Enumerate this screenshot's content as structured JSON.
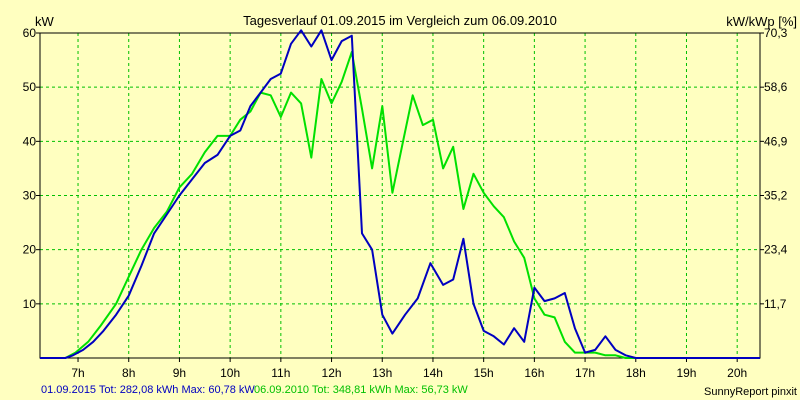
{
  "chart_data": {
    "type": "line",
    "title": "Tagesverlauf 01.09.2015 im Vergleich zum 06.09.2010",
    "ylabel_left": "kW",
    "ylabel_right": "kW/kWp [%]",
    "ylim": [
      0,
      60
    ],
    "y_ticks_left": [
      "10",
      "20",
      "30",
      "40",
      "50",
      "60"
    ],
    "y_ticks_right": [
      "11,7",
      "23,4",
      "35,2",
      "46,9",
      "58,6",
      "70,3"
    ],
    "x_ticks": [
      "7h",
      "8h",
      "9h",
      "10h",
      "11h",
      "12h",
      "13h",
      "14h",
      "15h",
      "16h",
      "17h",
      "18h",
      "19h",
      "20h"
    ],
    "xlim": [
      6.25,
      20.45
    ],
    "grid": true,
    "series": [
      {
        "name": "01.09.2015",
        "color": "#0000c0",
        "points": [
          [
            6.25,
            0
          ],
          [
            6.75,
            0
          ],
          [
            6.9,
            0.5
          ],
          [
            7.1,
            1.5
          ],
          [
            7.3,
            3
          ],
          [
            7.5,
            5
          ],
          [
            7.75,
            8
          ],
          [
            8.0,
            11.5
          ],
          [
            8.25,
            17
          ],
          [
            8.5,
            23
          ],
          [
            8.75,
            26.5
          ],
          [
            9.0,
            30
          ],
          [
            9.25,
            33
          ],
          [
            9.5,
            36
          ],
          [
            9.75,
            37.5
          ],
          [
            10.0,
            41
          ],
          [
            10.2,
            42
          ],
          [
            10.4,
            46.5
          ],
          [
            10.6,
            49
          ],
          [
            10.8,
            51.5
          ],
          [
            11.0,
            52.5
          ],
          [
            11.2,
            58
          ],
          [
            11.4,
            60.5
          ],
          [
            11.6,
            57.5
          ],
          [
            11.8,
            60.5
          ],
          [
            12.0,
            55
          ],
          [
            12.2,
            58.5
          ],
          [
            12.4,
            59.5
          ],
          [
            12.6,
            23
          ],
          [
            12.8,
            20
          ],
          [
            13.0,
            8
          ],
          [
            13.2,
            4.5
          ],
          [
            13.45,
            8
          ],
          [
            13.7,
            11
          ],
          [
            13.95,
            17.5
          ],
          [
            14.2,
            13.5
          ],
          [
            14.4,
            14.5
          ],
          [
            14.6,
            22
          ],
          [
            14.8,
            10
          ],
          [
            15.0,
            5
          ],
          [
            15.2,
            4
          ],
          [
            15.4,
            2.5
          ],
          [
            15.6,
            5.5
          ],
          [
            15.8,
            3
          ],
          [
            16.0,
            13
          ],
          [
            16.2,
            10.5
          ],
          [
            16.4,
            11
          ],
          [
            16.6,
            12
          ],
          [
            16.8,
            5.5
          ],
          [
            17.0,
            1
          ],
          [
            17.2,
            1.5
          ],
          [
            17.4,
            4
          ],
          [
            17.6,
            1.5
          ],
          [
            17.8,
            0.5
          ],
          [
            18.0,
            0
          ],
          [
            18.2,
            0
          ],
          [
            20.45,
            0
          ]
        ]
      },
      {
        "name": "06.09.2010",
        "color": "#00e000",
        "points": [
          [
            6.25,
            0
          ],
          [
            6.75,
            0
          ],
          [
            6.95,
            1
          ],
          [
            7.2,
            3
          ],
          [
            7.45,
            6
          ],
          [
            7.75,
            10
          ],
          [
            8.0,
            15
          ],
          [
            8.25,
            20
          ],
          [
            8.5,
            24
          ],
          [
            8.75,
            27
          ],
          [
            9.0,
            31.5
          ],
          [
            9.25,
            34
          ],
          [
            9.5,
            38
          ],
          [
            9.75,
            41
          ],
          [
            10.0,
            41
          ],
          [
            10.2,
            44
          ],
          [
            10.4,
            45.5
          ],
          [
            10.6,
            49
          ],
          [
            10.8,
            48.5
          ],
          [
            11.0,
            44.5
          ],
          [
            11.2,
            49
          ],
          [
            11.4,
            47
          ],
          [
            11.6,
            37
          ],
          [
            11.8,
            51.5
          ],
          [
            12.0,
            47
          ],
          [
            12.2,
            51
          ],
          [
            12.4,
            56.5
          ],
          [
            12.6,
            46
          ],
          [
            12.8,
            35
          ],
          [
            13.0,
            46.5
          ],
          [
            13.2,
            30.5
          ],
          [
            13.4,
            39.5
          ],
          [
            13.6,
            48.5
          ],
          [
            13.8,
            43
          ],
          [
            14.0,
            44
          ],
          [
            14.2,
            35
          ],
          [
            14.4,
            39
          ],
          [
            14.6,
            27.5
          ],
          [
            14.8,
            34
          ],
          [
            15.0,
            30.5
          ],
          [
            15.2,
            28
          ],
          [
            15.4,
            26
          ],
          [
            15.6,
            21.5
          ],
          [
            15.8,
            18.5
          ],
          [
            16.0,
            11
          ],
          [
            16.2,
            8
          ],
          [
            16.4,
            7.5
          ],
          [
            16.6,
            3
          ],
          [
            16.8,
            1
          ],
          [
            17.0,
            1
          ],
          [
            17.2,
            1
          ],
          [
            17.4,
            0.5
          ],
          [
            17.6,
            0.5
          ],
          [
            17.8,
            0
          ],
          [
            20.45,
            0
          ]
        ]
      }
    ]
  },
  "footer": {
    "series1_text": "01.09.2015 Tot: 282,08 kWh Max: 60,78 kW",
    "series2_text": "06.09.2010 Tot: 348,81 kWh Max: 56,73 kW",
    "brand": "SunnyReport pinxit"
  },
  "colors": {
    "background": "#ffffc0",
    "grid": "#00c000",
    "series1": "#0000c0",
    "series2": "#00e000"
  }
}
